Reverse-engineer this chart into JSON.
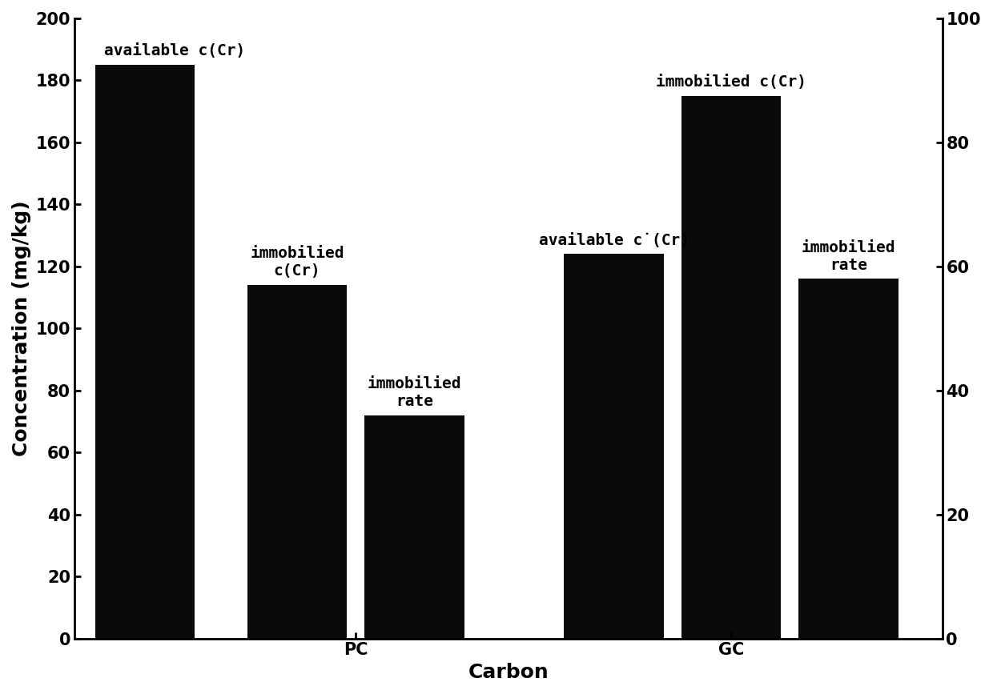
{
  "bar_positions": [
    1.0,
    2.3,
    3.3,
    5.0,
    6.0,
    7.0
  ],
  "bar_values": [
    185,
    114,
    72,
    124,
    175,
    116
  ],
  "bar_colors": [
    "#0a0a0a",
    "#0a0a0a",
    "#0a0a0a",
    "#0a0a0a",
    "#0a0a0a",
    "#0a0a0a"
  ],
  "bar_width": 0.85,
  "bar_labels": [
    "available c(Cr)",
    "immobilied\nc(Cr)",
    "immobilied\nrate",
    "available ċ(Cr)",
    "immobilied c(Cr)",
    "immobilied\nrate"
  ],
  "bar_label_ha": [
    "left",
    "center",
    "center",
    "center",
    "center",
    "center"
  ],
  "bar_label_x_offset": [
    -0.35,
    0,
    0,
    0,
    0,
    0
  ],
  "xtick_positions": [
    2.8,
    6.0
  ],
  "xtick_labels": [
    "PC",
    "GC"
  ],
  "xlabel": "Carbon",
  "ylabel": "Concentration (mg/kg)",
  "ylim": [
    0,
    200
  ],
  "ylim2": [
    0,
    100
  ],
  "yticks_left": [
    0,
    20,
    40,
    60,
    80,
    100,
    120,
    140,
    160,
    180,
    200
  ],
  "yticks_right": [
    0,
    20,
    40,
    60,
    80,
    100
  ],
  "xlim": [
    0.4,
    7.8
  ],
  "background_color": "#ffffff",
  "bar_label_fontsize": 14,
  "axis_label_fontsize": 18,
  "tick_fontsize": 15
}
